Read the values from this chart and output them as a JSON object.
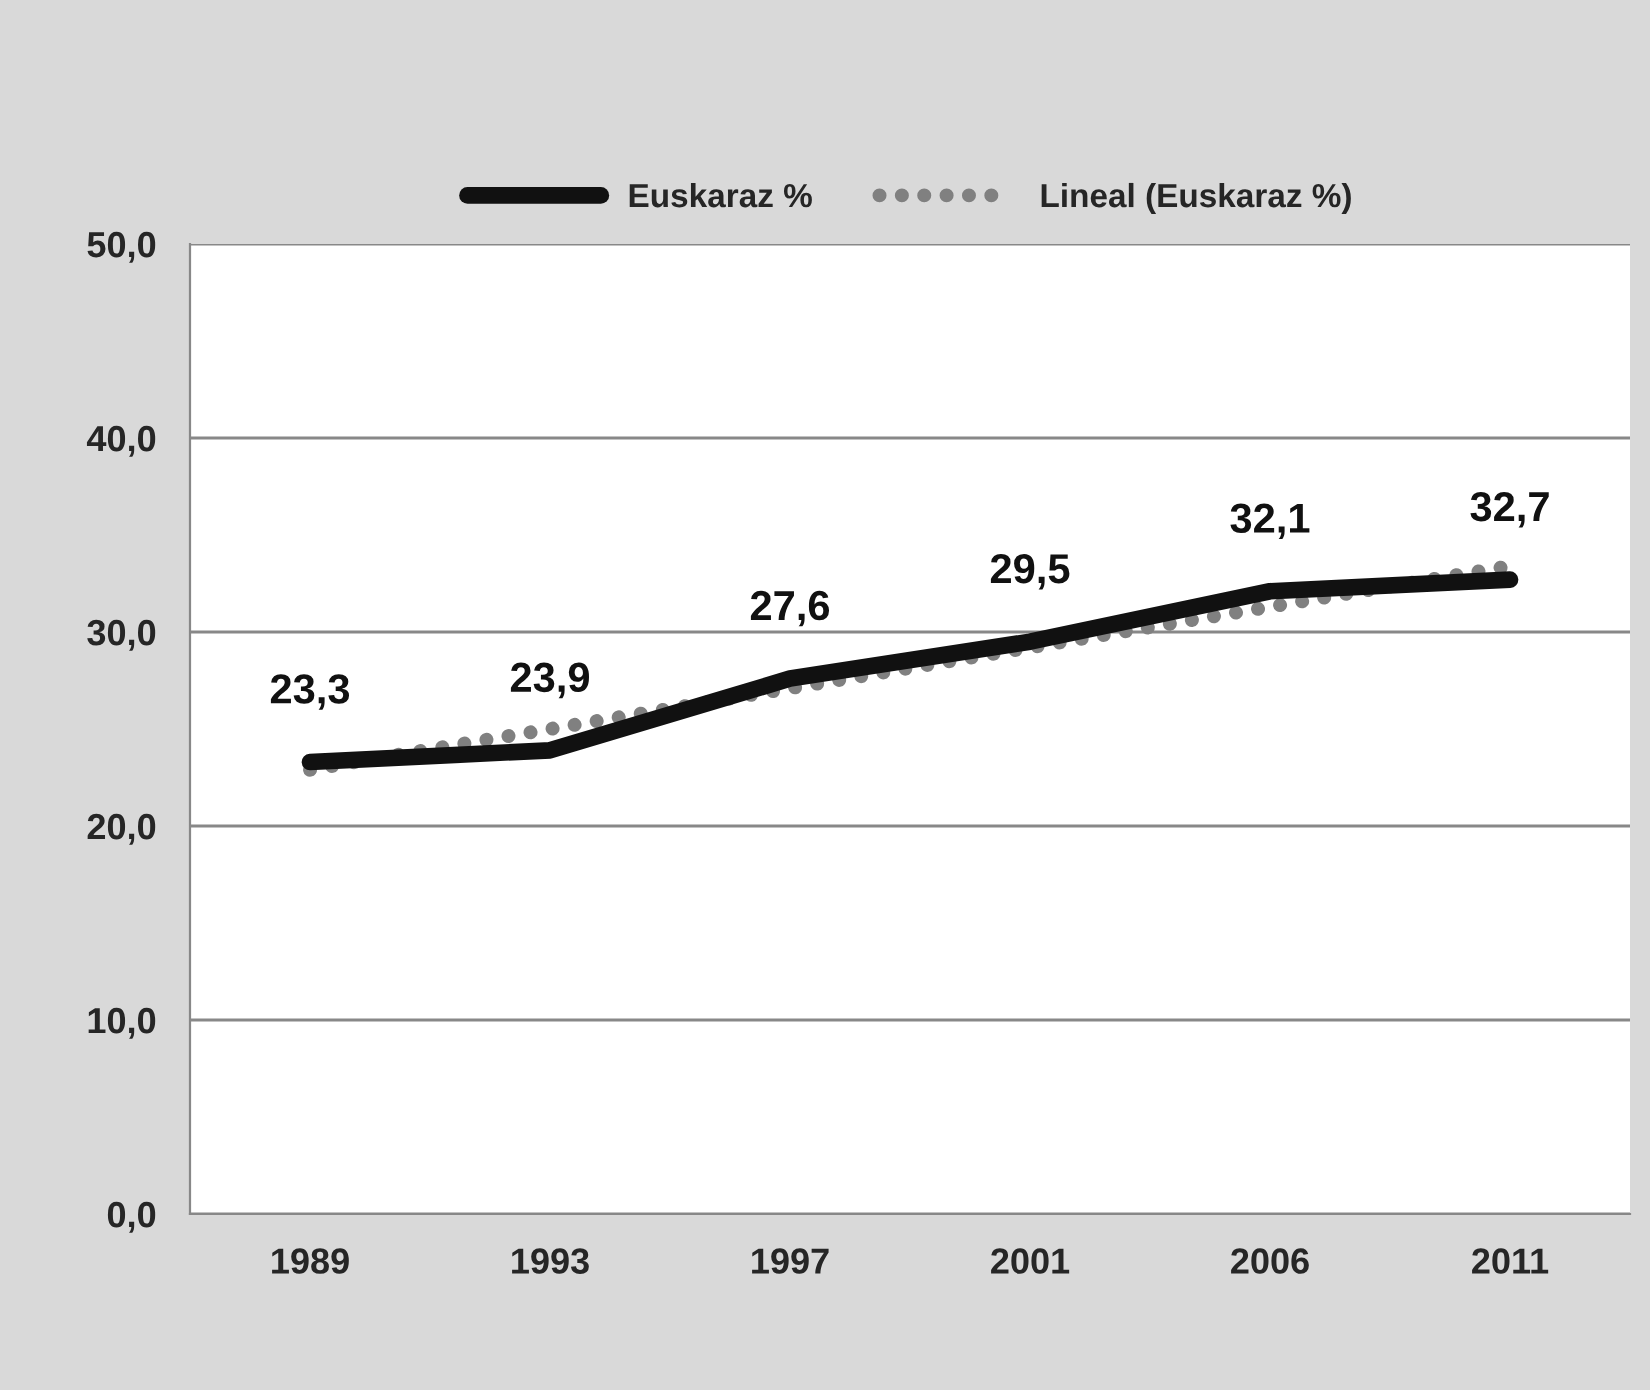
{
  "chart_data": {
    "type": "line",
    "categories": [
      "1989",
      "1993",
      "1997",
      "2001",
      "2006",
      "2011"
    ],
    "series": [
      {
        "name": "Euskaraz %",
        "color": "#111111",
        "values": [
          23.3,
          23.9,
          27.6,
          29.5,
          32.1,
          32.7
        ],
        "value_labels": [
          "23,3",
          "23,9",
          "27,6",
          "29,5",
          "32,1",
          "32,7"
        ],
        "line_style": "solid",
        "marker": "none"
      },
      {
        "name": "Lineal (Euskaraz %)",
        "color": "#808080",
        "values": [
          22.9,
          25.0,
          27.1,
          29.2,
          31.3,
          33.4
        ],
        "line_style": "dotted",
        "marker": "none"
      }
    ],
    "ylim": [
      0,
      50
    ],
    "yticks": [
      {
        "value": 0,
        "label": "0,0"
      },
      {
        "value": 10,
        "label": "10,0"
      },
      {
        "value": 20,
        "label": "20,0"
      },
      {
        "value": 30,
        "label": "30,0"
      },
      {
        "value": 40,
        "label": "40,0"
      },
      {
        "value": 50,
        "label": "50,0"
      }
    ],
    "grid": "y",
    "legend": "top"
  }
}
